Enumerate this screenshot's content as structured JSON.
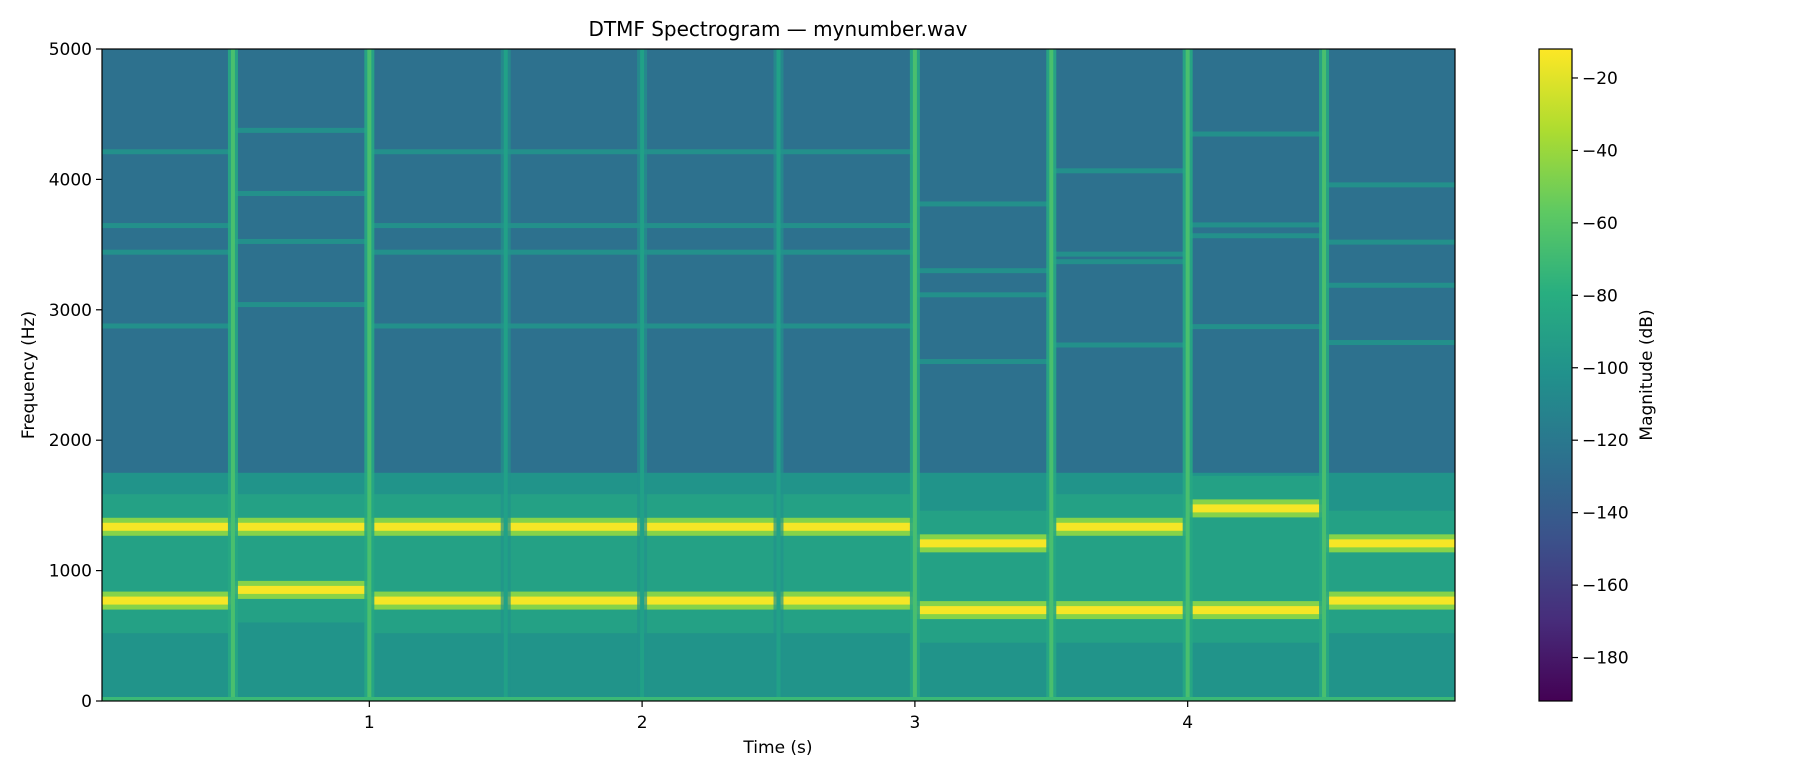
{
  "chart_data": {
    "type": "heatmap",
    "subtype": "spectrogram",
    "title": "DTMF Spectrogram — mynumber.wav",
    "xlabel": "Time (s)",
    "ylabel": "Frequency (Hz)",
    "xlim": [
      0.02,
      4.98
    ],
    "ylim": [
      0,
      5000
    ],
    "xticks": [
      1,
      2,
      3,
      4
    ],
    "xtick_labels": [
      "1",
      "2",
      "3",
      "4"
    ],
    "yticks": [
      0,
      1000,
      2000,
      3000,
      4000,
      5000
    ],
    "ytick_labels": [
      "0",
      "1000",
      "2000",
      "3000",
      "4000",
      "5000"
    ],
    "colormap": "viridis",
    "colorbar": {
      "label": "Magnitude (dB)",
      "range": [
        -192,
        -12
      ],
      "ticks": [
        -20,
        -40,
        -60,
        -80,
        -100,
        -120,
        -140,
        -160,
        -180
      ],
      "tick_labels": [
        "−20",
        "−40",
        "−60",
        "−80",
        "−100",
        "−120",
        "−140",
        "−160",
        "−180"
      ]
    },
    "background_db": -125,
    "segments": [
      {
        "start": 0.0,
        "end": 0.5,
        "low_hz": 770,
        "high_hz": 1336
      },
      {
        "start": 0.5,
        "end": 1.0,
        "low_hz": 852,
        "high_hz": 1336
      },
      {
        "start": 1.0,
        "end": 1.5,
        "low_hz": 770,
        "high_hz": 1336
      },
      {
        "start": 1.5,
        "end": 2.0,
        "low_hz": 770,
        "high_hz": 1336
      },
      {
        "start": 2.0,
        "end": 2.5,
        "low_hz": 770,
        "high_hz": 1336
      },
      {
        "start": 2.5,
        "end": 3.0,
        "low_hz": 770,
        "high_hz": 1336
      },
      {
        "start": 3.0,
        "end": 3.5,
        "low_hz": 697,
        "high_hz": 1209
      },
      {
        "start": 3.5,
        "end": 4.0,
        "low_hz": 697,
        "high_hz": 1336
      },
      {
        "start": 4.0,
        "end": 4.5,
        "low_hz": 697,
        "high_hz": 1477
      },
      {
        "start": 4.5,
        "end": 5.0,
        "low_hz": 770,
        "high_hz": 1209
      }
    ],
    "segment_boundaries": [
      0.5,
      1.0,
      1.5,
      2.0,
      2.5,
      3.0,
      3.5,
      4.0,
      4.5
    ],
    "grid": false
  }
}
